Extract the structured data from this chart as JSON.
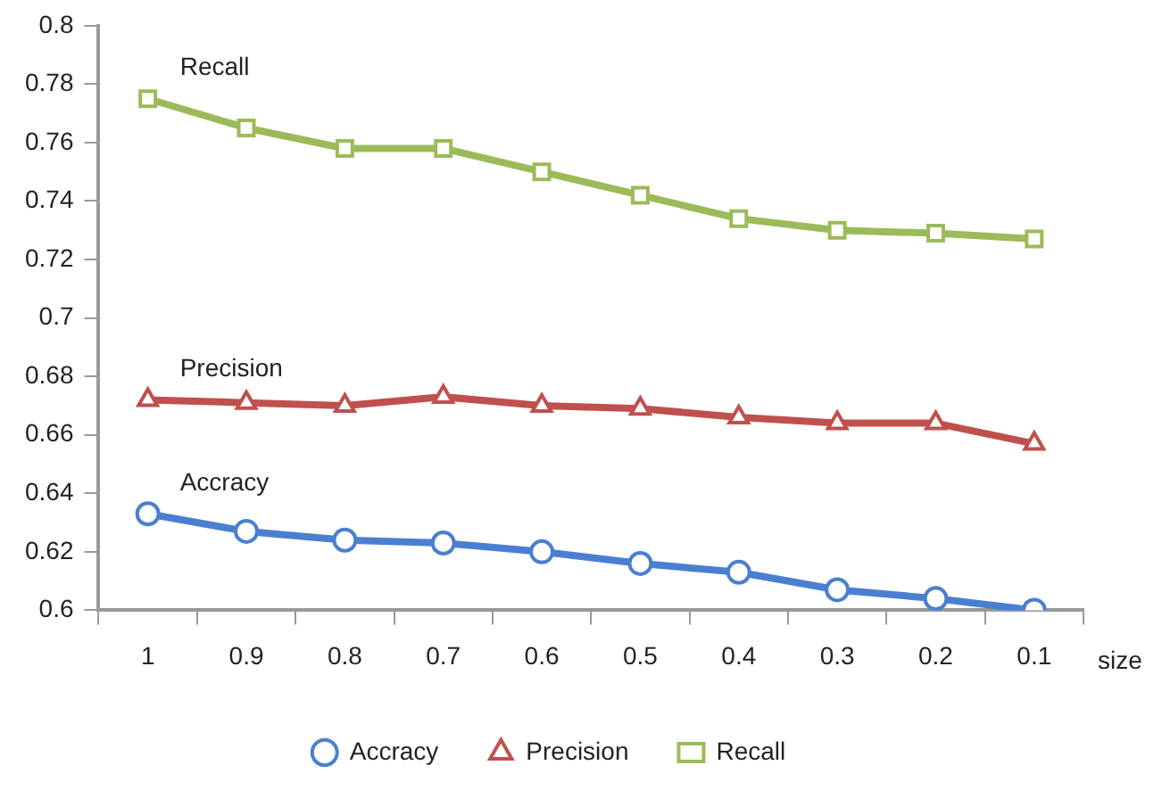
{
  "chart_data": {
    "type": "line",
    "xlabel": "size",
    "categories": [
      "1",
      "0.9",
      "0.8",
      "0.7",
      "0.6",
      "0.5",
      "0.4",
      "0.3",
      "0.2",
      "0.1"
    ],
    "series": [
      {
        "name": "Accracy",
        "color": "#4a7fd0",
        "marker": "circle",
        "values": [
          0.633,
          0.627,
          0.624,
          0.623,
          0.62,
          0.616,
          0.613,
          0.607,
          0.604,
          0.6
        ]
      },
      {
        "name": "Precision",
        "color": "#c0504d",
        "marker": "triangle",
        "values": [
          0.672,
          0.671,
          0.67,
          0.673,
          0.67,
          0.669,
          0.666,
          0.664,
          0.664,
          0.657
        ]
      },
      {
        "name": "Recall",
        "color": "#9bbb59",
        "marker": "square",
        "values": [
          0.775,
          0.765,
          0.758,
          0.758,
          0.75,
          0.742,
          0.734,
          0.73,
          0.729,
          0.727
        ]
      }
    ],
    "annotations": [
      "Accracy",
      "Precision",
      "Recall"
    ],
    "ylim": [
      0.6,
      0.8
    ],
    "yticks": [
      0.6,
      0.62,
      0.64,
      0.66,
      0.68,
      0.7,
      0.72,
      0.74,
      0.76,
      0.78,
      0.8
    ],
    "grid": false,
    "legend": "bottom",
    "line_style": "solid"
  }
}
